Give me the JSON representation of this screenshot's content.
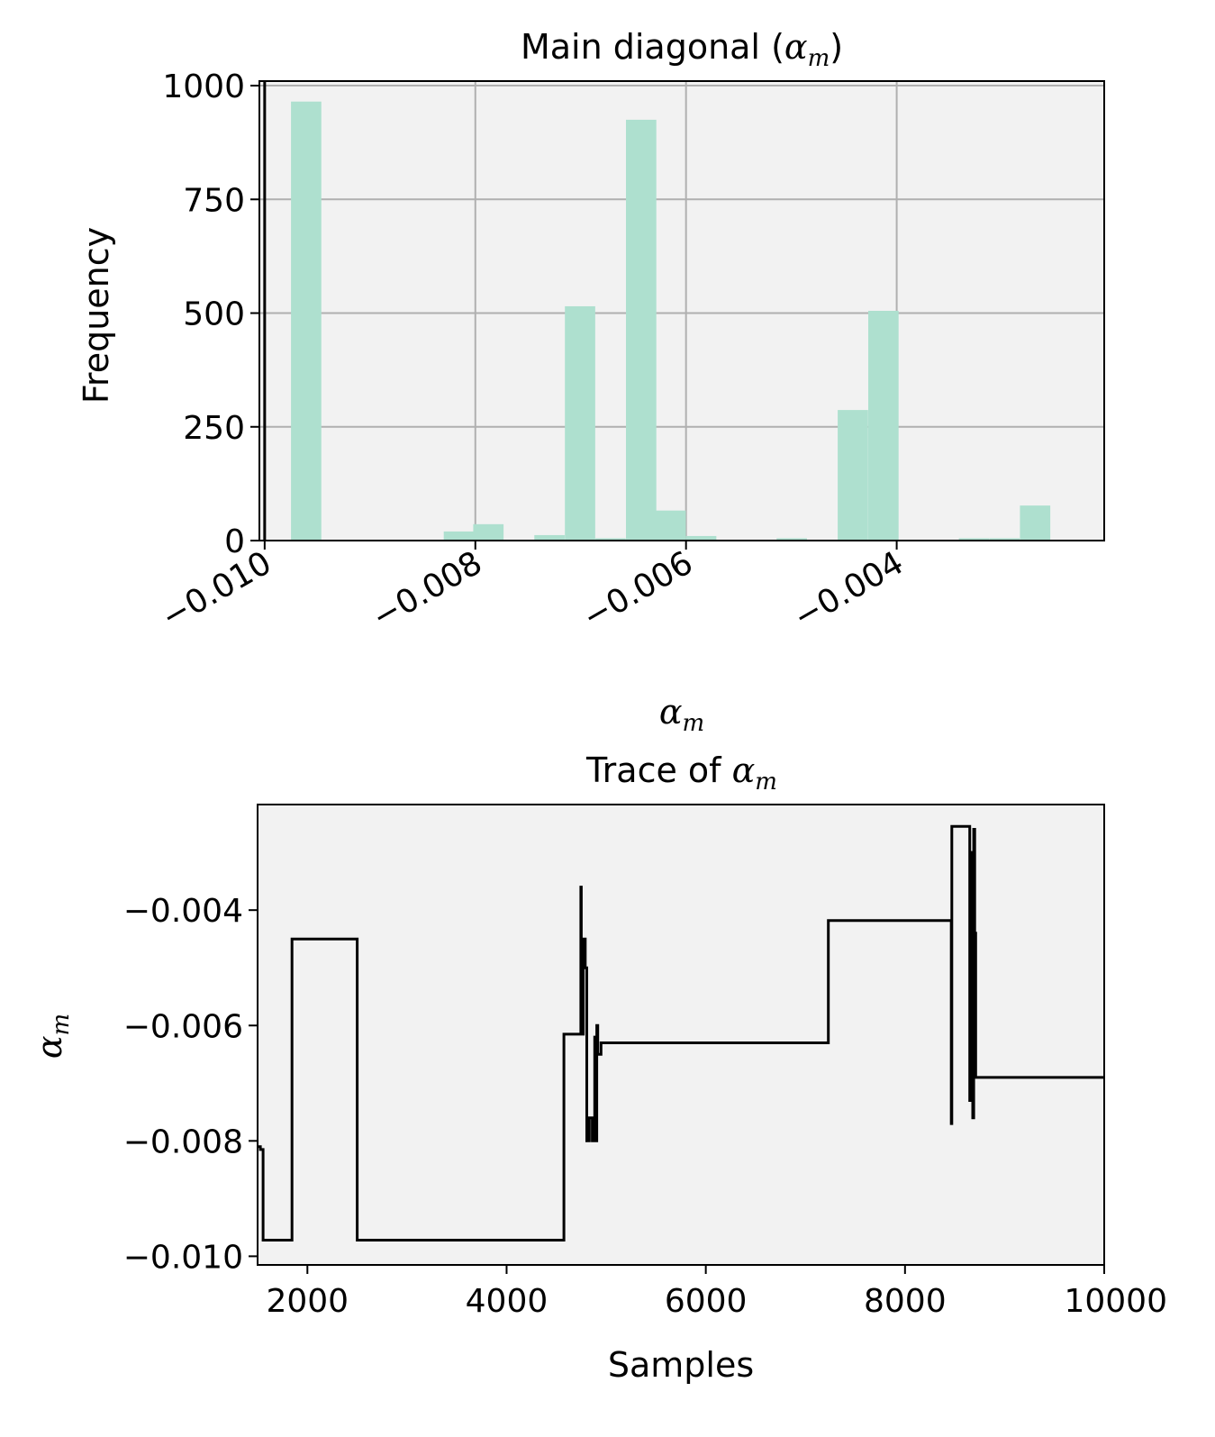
{
  "chart_data": [
    {
      "type": "bar",
      "title_text": "Main diagonal (",
      "title_math": "α",
      "title_sub": "m",
      "title_close": ")",
      "xlabel_math": "α",
      "xlabel_sub": "m",
      "ylabel": "Frequency",
      "xlim": [
        -0.01005,
        -0.00203
      ],
      "ylim": [
        0,
        1010
      ],
      "xticks": [
        -0.01,
        -0.008,
        -0.006,
        -0.004
      ],
      "xtick_labels": [
        "−0.010",
        "−0.008",
        "−0.006",
        "−0.004"
      ],
      "yticks": [
        0,
        250,
        500,
        750,
        1000
      ],
      "ytick_labels": [
        "0",
        "250",
        "500",
        "750",
        "1000"
      ],
      "grid": true,
      "bar_color": "#aee0cf",
      "background": "#f2f2f2",
      "vline_x": -0.01,
      "bin_width": 0.000288,
      "bins": [
        {
          "x0": -0.00975,
          "count": 965
        },
        {
          "x0": -0.0083,
          "count": 20
        },
        {
          "x0": -0.00802,
          "count": 36
        },
        {
          "x0": -0.00744,
          "count": 12
        },
        {
          "x0": -0.00715,
          "count": 515
        },
        {
          "x0": -0.00686,
          "count": 5
        },
        {
          "x0": -0.00657,
          "count": 925
        },
        {
          "x0": -0.00629,
          "count": 66
        },
        {
          "x0": -0.006,
          "count": 10
        },
        {
          "x0": -0.00514,
          "count": 5
        },
        {
          "x0": -0.00456,
          "count": 287
        },
        {
          "x0": -0.00427,
          "count": 505
        },
        {
          "x0": -0.00341,
          "count": 5
        },
        {
          "x0": -0.00312,
          "count": 5
        },
        {
          "x0": -0.00283,
          "count": 77
        }
      ]
    },
    {
      "type": "line",
      "title_text": "Trace of ",
      "title_math": "α",
      "title_sub": "m",
      "xlabel": "Samples",
      "ylabel_math": "α",
      "ylabel_sub": "m",
      "xlim": [
        1500,
        10000
      ],
      "ylim": [
        -0.01015,
        -0.00217
      ],
      "xticks": [
        2000,
        4000,
        6000,
        8000,
        10000
      ],
      "xtick_labels": [
        "2000",
        "4000",
        "6000",
        "8000",
        "10000"
      ],
      "yticks": [
        -0.01,
        -0.008,
        -0.006,
        -0.004
      ],
      "ytick_labels": [
        "−0.010",
        "−0.008",
        "−0.006",
        "−0.004"
      ],
      "grid": false,
      "line_color": "#000000",
      "background": "#f2f2f2",
      "x": [
        1500,
        1528,
        1528,
        1555,
        1555,
        1845,
        1845,
        2500,
        2500,
        4575,
        4575,
        4745,
        4745,
        4750,
        4750,
        4770,
        4770,
        4790,
        4790,
        4805,
        4805,
        4815,
        4815,
        4830,
        4830,
        4860,
        4860,
        4885,
        4885,
        4895,
        4895,
        4905,
        4905,
        4915,
        4915,
        4928,
        4928,
        4948,
        4948,
        4970,
        4970,
        5000,
        5000,
        7230,
        7230,
        8465,
        8465,
        8470,
        8470,
        8650,
        8650,
        8670,
        8670,
        8680,
        8680,
        8690,
        8690,
        8700,
        8700,
        8710,
        8710,
        8720,
        8720,
        8735,
        8735,
        10000
      ],
      "y": [
        -0.0081,
        -0.0081,
        -0.00815,
        -0.00815,
        -0.00972,
        -0.00972,
        -0.0045,
        -0.0045,
        -0.00972,
        -0.00972,
        -0.00615,
        -0.00615,
        -0.0036,
        -0.0036,
        -0.00615,
        -0.00615,
        -0.0045,
        -0.0045,
        -0.005,
        -0.005,
        -0.008,
        -0.008,
        -0.008,
        -0.008,
        -0.0076,
        -0.0076,
        -0.008,
        -0.008,
        -0.0062,
        -0.0062,
        -0.008,
        -0.008,
        -0.006,
        -0.006,
        -0.0065,
        -0.0065,
        -0.0065,
        -0.0065,
        -0.0063,
        -0.0063,
        -0.0063,
        -0.0063,
        -0.0063,
        -0.0063,
        -0.00418,
        -0.00418,
        -0.0077,
        -0.0077,
        -0.00255,
        -0.00255,
        -0.0073,
        -0.0073,
        -0.003,
        -0.003,
        -0.0076,
        -0.0076,
        -0.0026,
        -0.0026,
        -0.0044,
        -0.0044,
        -0.0069,
        -0.0069,
        -0.0069,
        -0.0069,
        -0.0069,
        -0.0069
      ]
    }
  ]
}
